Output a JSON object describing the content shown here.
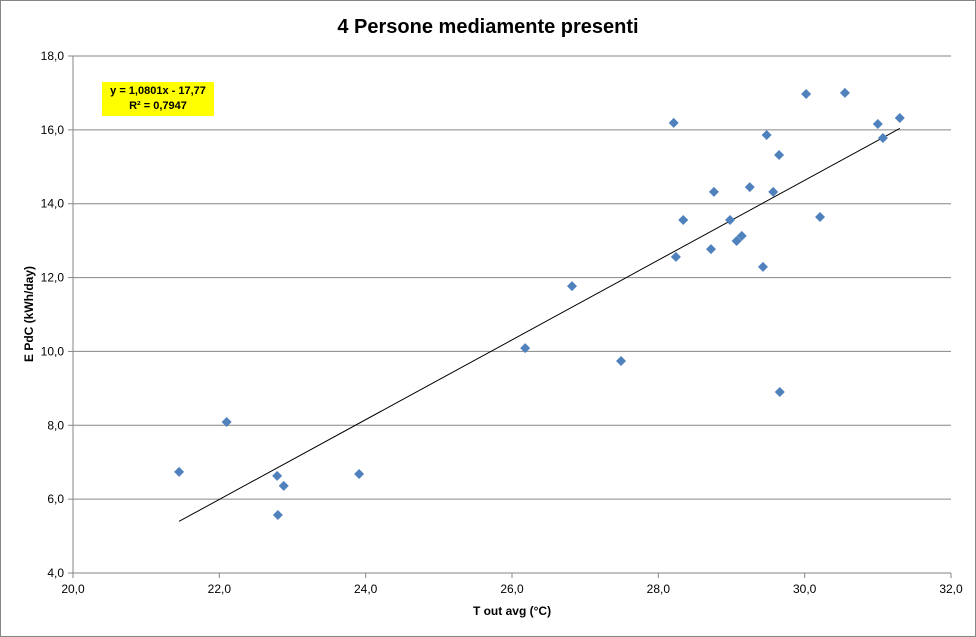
{
  "chart_data": {
    "type": "scatter",
    "title": "4 Persone mediamente presenti",
    "xlabel": "T out avg (°C)",
    "ylabel": "E PdC (kWh/day)",
    "xlim": [
      20,
      32
    ],
    "ylim": [
      4,
      18
    ],
    "xticks": [
      20,
      22,
      24,
      26,
      28,
      30,
      32
    ],
    "yticks": [
      4,
      6,
      8,
      10,
      12,
      14,
      16,
      18
    ],
    "xtick_labels": [
      "20,0",
      "22,0",
      "24,0",
      "26,0",
      "28,0",
      "30,0",
      "32,0"
    ],
    "ytick_labels": [
      "4,0",
      "6,0",
      "8,0",
      "10,0",
      "12,0",
      "14,0",
      "16,0",
      "18,0"
    ],
    "grid": {
      "horizontal": true,
      "vertical": false
    },
    "marker_color": "#4f81bd",
    "marker": "diamond",
    "points": [
      [
        21.45,
        6.74
      ],
      [
        22.1,
        8.09
      ],
      [
        22.79,
        6.63
      ],
      [
        22.88,
        6.36
      ],
      [
        22.8,
        5.57
      ],
      [
        23.91,
        6.68
      ],
      [
        26.18,
        10.09
      ],
      [
        26.82,
        11.77
      ],
      [
        27.49,
        9.74
      ],
      [
        28.24,
        12.56
      ],
      [
        28.34,
        13.56
      ],
      [
        28.21,
        16.19
      ],
      [
        28.72,
        12.77
      ],
      [
        28.76,
        14.32
      ],
      [
        28.98,
        13.56
      ],
      [
        29.07,
        12.99
      ],
      [
        29.14,
        13.13
      ],
      [
        29.25,
        14.45
      ],
      [
        29.43,
        12.29
      ],
      [
        29.48,
        15.86
      ],
      [
        29.57,
        14.32
      ],
      [
        29.65,
        15.32
      ],
      [
        29.66,
        8.9
      ],
      [
        30.02,
        16.97
      ],
      [
        30.21,
        13.64
      ],
      [
        30.55,
        17.0
      ],
      [
        31.0,
        16.16
      ],
      [
        31.07,
        15.78
      ],
      [
        31.3,
        16.32
      ]
    ],
    "trendline": {
      "type": "linear",
      "slope": 1.0801,
      "intercept": -17.77,
      "x_range": [
        21.45,
        31.3
      ],
      "color": "#000000",
      "equation_label": "y = 1,0801x - 17,77",
      "r2_label": "R² = 0,7947",
      "label_background": "#ffff00"
    }
  }
}
